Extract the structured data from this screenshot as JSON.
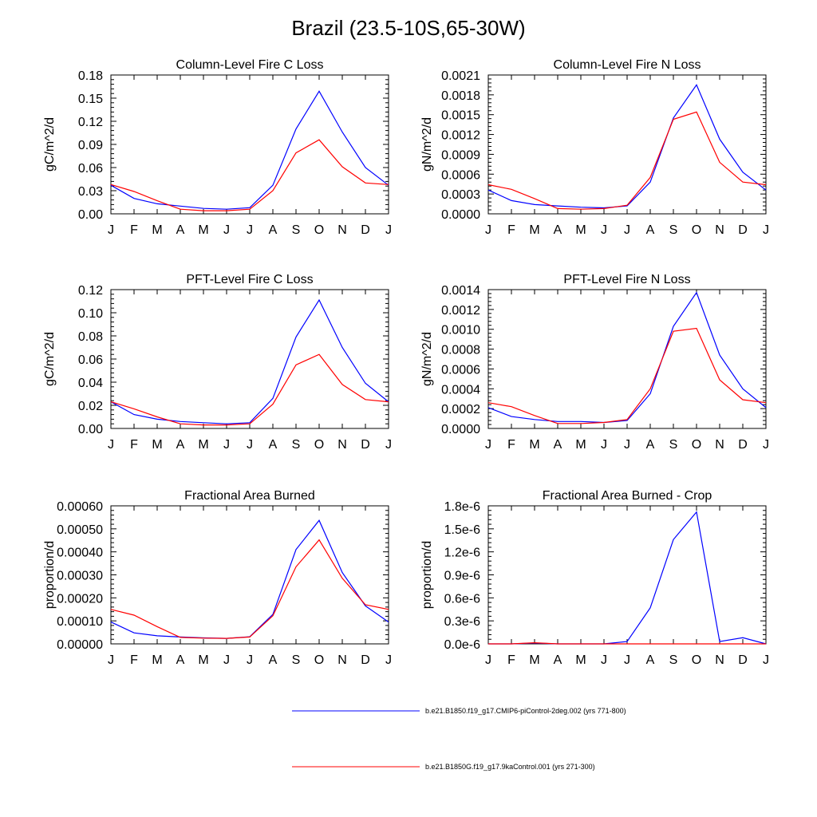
{
  "title": "Brazil (23.5-10S,65-30W)",
  "series_colors": {
    "control_2deg": "#0000ff",
    "ka9_control": "#ff0000"
  },
  "legend": [
    {
      "label": "b.e21.B1850.f19_g17.CMIP6-piControl-2deg.002 (yrs 771-800)",
      "color": "#0000ff"
    },
    {
      "label": "b.e21.B1850G.f19_g17.9kaControl.001 (yrs 271-300)",
      "color": "#ff0000"
    }
  ],
  "chart_data": [
    {
      "type": "line",
      "title": "Column-Level Fire C Loss",
      "ylabel": "gC/m^2/d",
      "categories": [
        "J",
        "F",
        "M",
        "A",
        "M",
        "J",
        "J",
        "A",
        "S",
        "O",
        "N",
        "D",
        "J"
      ],
      "ylim": [
        0,
        0.18
      ],
      "yticks": [
        "0.00",
        "0.03",
        "0.06",
        "0.09",
        "0.12",
        "0.15",
        "0.18"
      ],
      "series": [
        {
          "color": "#0000ff",
          "values": [
            0.037,
            0.02,
            0.013,
            0.01,
            0.007,
            0.006,
            0.008,
            0.037,
            0.11,
            0.159,
            0.106,
            0.06,
            0.037
          ]
        },
        {
          "color": "#ff0000",
          "values": [
            0.038,
            0.029,
            0.017,
            0.006,
            0.004,
            0.004,
            0.006,
            0.03,
            0.079,
            0.096,
            0.061,
            0.04,
            0.038
          ]
        }
      ]
    },
    {
      "type": "line",
      "title": "Column-Level Fire N Loss",
      "ylabel": "gN/m^2/d",
      "categories": [
        "J",
        "F",
        "M",
        "A",
        "M",
        "J",
        "J",
        "A",
        "S",
        "O",
        "N",
        "D",
        "J"
      ],
      "ylim": [
        0,
        0.0021
      ],
      "yticks": [
        "0.0000",
        "0.0003",
        "0.0006",
        "0.0009",
        "0.0012",
        "0.0015",
        "0.0018",
        "0.0021"
      ],
      "series": [
        {
          "color": "#0000ff",
          "values": [
            0.00036,
            0.0002,
            0.00014,
            0.00012,
            0.0001,
            9e-05,
            0.00012,
            0.00048,
            0.00145,
            0.00195,
            0.00113,
            0.00063,
            0.00036
          ]
        },
        {
          "color": "#ff0000",
          "values": [
            0.00044,
            0.00037,
            0.00023,
            8e-05,
            7e-05,
            8e-05,
            0.00013,
            0.00055,
            0.00143,
            0.00154,
            0.00078,
            0.00048,
            0.00044
          ]
        }
      ]
    },
    {
      "type": "line",
      "title": "PFT-Level Fire C Loss",
      "ylabel": "gC/m^2/d",
      "categories": [
        "J",
        "F",
        "M",
        "A",
        "M",
        "J",
        "J",
        "A",
        "S",
        "O",
        "N",
        "D",
        "J"
      ],
      "ylim": [
        0,
        0.12
      ],
      "yticks": [
        "0.00",
        "0.02",
        "0.04",
        "0.06",
        "0.08",
        "0.10",
        "0.12"
      ],
      "series": [
        {
          "color": "#0000ff",
          "values": [
            0.023,
            0.012,
            0.008,
            0.006,
            0.005,
            0.004,
            0.005,
            0.026,
            0.079,
            0.111,
            0.07,
            0.039,
            0.023
          ]
        },
        {
          "color": "#ff0000",
          "values": [
            0.023,
            0.017,
            0.01,
            0.004,
            0.003,
            0.003,
            0.004,
            0.021,
            0.055,
            0.064,
            0.038,
            0.025,
            0.023
          ]
        }
      ]
    },
    {
      "type": "line",
      "title": "PFT-Level Fire N Loss",
      "ylabel": "gN/m^2/d",
      "categories": [
        "J",
        "F",
        "M",
        "A",
        "M",
        "J",
        "J",
        "A",
        "S",
        "O",
        "N",
        "D",
        "J"
      ],
      "ylim": [
        0,
        0.0014
      ],
      "yticks": [
        "0.0000",
        "0.0002",
        "0.0004",
        "0.0006",
        "0.0008",
        "0.0010",
        "0.0012",
        "0.0014"
      ],
      "series": [
        {
          "color": "#0000ff",
          "values": [
            0.00021,
            0.00012,
            9e-05,
            7e-05,
            7e-05,
            6e-05,
            8e-05,
            0.00035,
            0.00103,
            0.00137,
            0.00074,
            0.0004,
            0.00021
          ]
        },
        {
          "color": "#ff0000",
          "values": [
            0.00026,
            0.00022,
            0.00013,
            5e-05,
            5e-05,
            6e-05,
            9e-05,
            0.0004,
            0.00098,
            0.00101,
            0.00049,
            0.00029,
            0.00026
          ]
        }
      ]
    },
    {
      "type": "line",
      "title": "Fractional Area Burned",
      "ylabel": "proportion/d",
      "categories": [
        "J",
        "F",
        "M",
        "A",
        "M",
        "J",
        "J",
        "A",
        "S",
        "O",
        "N",
        "D",
        "J"
      ],
      "ylim": [
        0,
        0.0006
      ],
      "yticks": [
        "0.00000",
        "0.00010",
        "0.00020",
        "0.00030",
        "0.00040",
        "0.00050",
        "0.00060"
      ],
      "series": [
        {
          "color": "#0000ff",
          "values": [
            9.5e-05,
            4.8e-05,
            3.5e-05,
            3e-05,
            2.6e-05,
            2.4e-05,
            3.1e-05,
            0.000128,
            0.00041,
            0.000537,
            0.00031,
            0.000165,
            9.5e-05
          ]
        },
        {
          "color": "#ff0000",
          "values": [
            0.00015,
            0.000125,
            7.5e-05,
            2.8e-05,
            2.5e-05,
            2.4e-05,
            3e-05,
            0.000122,
            0.000335,
            0.000452,
            0.000285,
            0.00017,
            0.00015
          ]
        }
      ]
    },
    {
      "type": "line",
      "title": "Fractional Area Burned - Crop",
      "ylabel": "proportion/d",
      "categories": [
        "J",
        "F",
        "M",
        "A",
        "M",
        "J",
        "J",
        "A",
        "S",
        "O",
        "N",
        "D",
        "J"
      ],
      "ylim": [
        0,
        1.8e-06
      ],
      "yticks": [
        "0.0e-6",
        "0.3e-6",
        "0.6e-6",
        "0.9e-6",
        "1.2e-6",
        "1.5e-6",
        "1.8e-6"
      ],
      "series": [
        {
          "color": "#0000ff",
          "values": [
            0,
            0,
            1e-08,
            0,
            0,
            0,
            3e-08,
            4.7e-07,
            1.36e-06,
            1.72e-06,
            3e-08,
            8e-08,
            0
          ]
        },
        {
          "color": "#ff0000",
          "values": [
            0,
            0,
            1.5e-08,
            0,
            0,
            0,
            0,
            0,
            0,
            0,
            0,
            0,
            0
          ]
        }
      ]
    }
  ]
}
